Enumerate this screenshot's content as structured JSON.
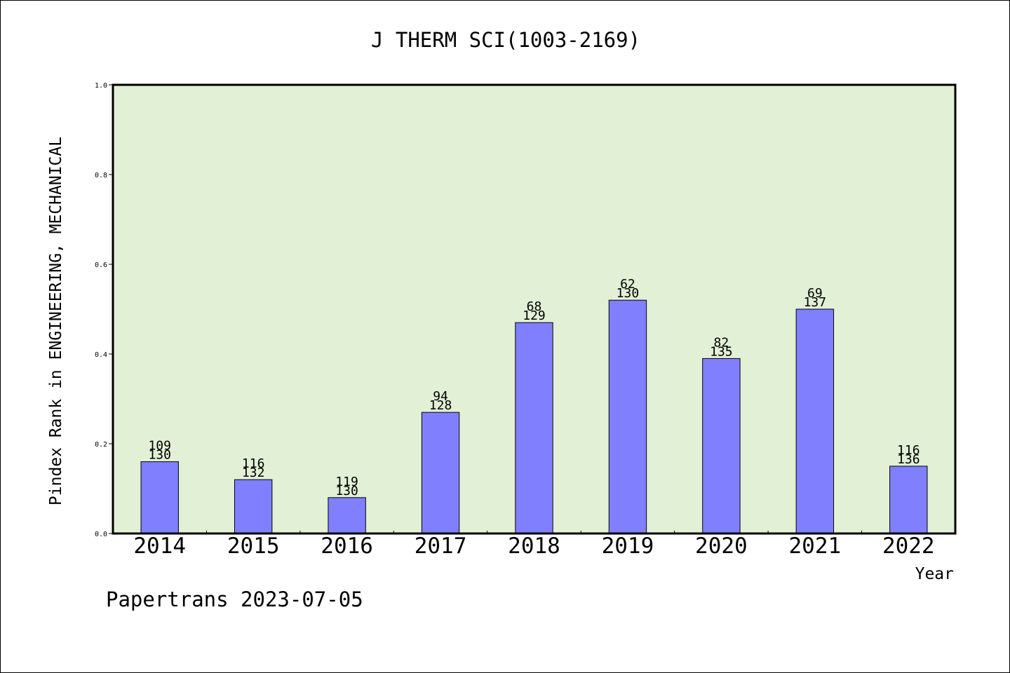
{
  "chart_data": {
    "type": "bar",
    "title": "J THERM SCI(1003-2169)",
    "xlabel": "Year",
    "ylabel": "Pindex Rank in ENGINEERING, MECHANICAL",
    "ylim": [
      0,
      1.0
    ],
    "yticks": [
      "0.0",
      "0.2",
      "0.4",
      "0.6",
      "0.8",
      "1.0"
    ],
    "categories": [
      "2014",
      "2015",
      "2016",
      "2017",
      "2018",
      "2019",
      "2020",
      "2021",
      "2022"
    ],
    "values": [
      0.16,
      0.12,
      0.08,
      0.27,
      0.47,
      0.52,
      0.39,
      0.5,
      0.15
    ],
    "rank": [
      "109",
      "116",
      "119",
      "94",
      "68",
      "62",
      "82",
      "69",
      "116"
    ],
    "total": [
      "130",
      "132",
      "130",
      "128",
      "129",
      "130",
      "135",
      "137",
      "136"
    ],
    "grid": false,
    "legend": "none",
    "colors": {
      "plot_background": "#e2f0d6",
      "bar_fill": "#8080ff",
      "bar_stroke": "#000000"
    }
  },
  "footer": {
    "text": "Papertrans 2023-07-05"
  }
}
